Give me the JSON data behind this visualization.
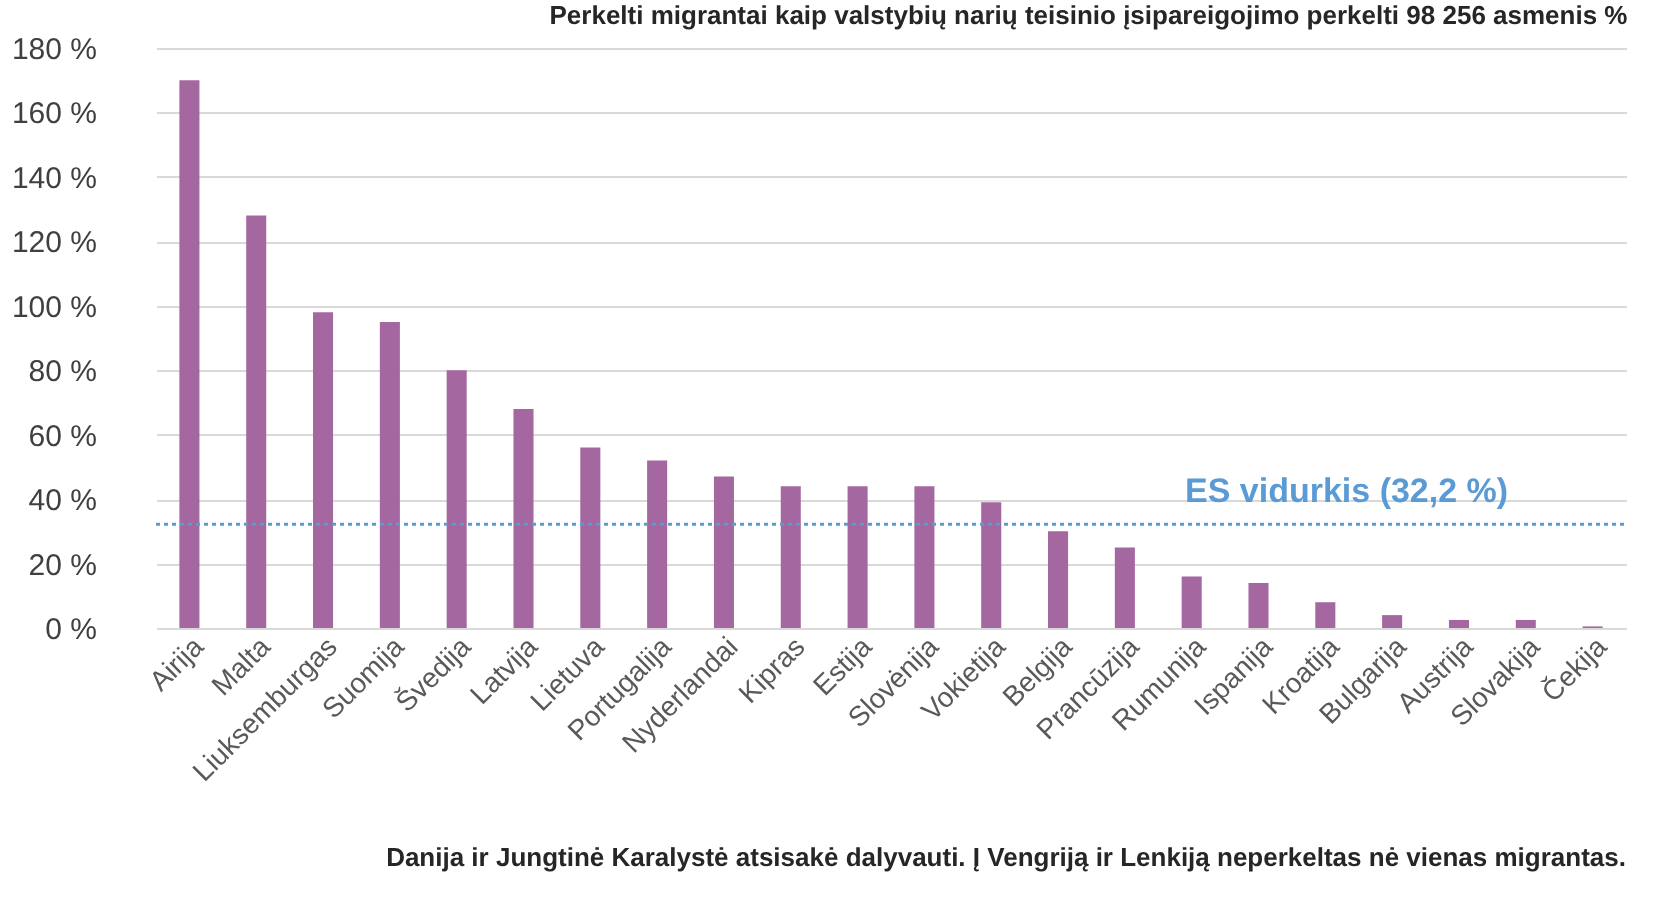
{
  "chart_data": {
    "type": "bar",
    "title": "Perkelti migrantai kaip valstybių narių teisinio įsipareigojimo perkelti 98 256 asmenis %",
    "categories": [
      "Airija",
      "Malta",
      "Liuksemburgas",
      "Suomija",
      "Švedija",
      "Latvija",
      "Lietuva",
      "Portugalija",
      "Nyderlandai",
      "Kipras",
      "Estija",
      "Slovėnija",
      "Vokietija",
      "Belgija",
      "Prancūzija",
      "Rumunija",
      "Ispanija",
      "Kroatija",
      "Bulgarija",
      "Austrija",
      "Slovakija",
      "Čekija"
    ],
    "values": [
      170,
      128,
      98,
      95,
      80,
      68,
      56,
      52,
      47,
      44,
      44,
      44,
      39,
      30,
      25,
      16,
      14,
      8,
      4,
      2.5,
      2.5,
      0.5
    ],
    "color": "#a4679f",
    "ylim": [
      0,
      180
    ],
    "yticks": [
      {
        "value": 0,
        "label": "0 %"
      },
      {
        "value": 20,
        "label": "20 %"
      },
      {
        "value": 40,
        "label": "40 %"
      },
      {
        "value": 60,
        "label": "60 %"
      },
      {
        "value": 80,
        "label": "80 %"
      },
      {
        "value": 100,
        "label": "100 %"
      },
      {
        "value": 120,
        "label": "120 %"
      },
      {
        "value": 140,
        "label": "140 %"
      },
      {
        "value": 160,
        "label": "160 %"
      },
      {
        "value": 180,
        "label": "180 %"
      }
    ],
    "ref_lines": [
      {
        "axis": "y",
        "value": 32.2,
        "label": "ES vidurkis (32,2 %)",
        "color": "#5b9bd5",
        "line_style": "dotted"
      }
    ],
    "annotations": [
      "Danija ir Jungtinė Karalystė atsisakė dalyvauti. Į Vengriją ir Lenkiją neperkeltas nė vienas migrantas."
    ],
    "grid": "y"
  }
}
